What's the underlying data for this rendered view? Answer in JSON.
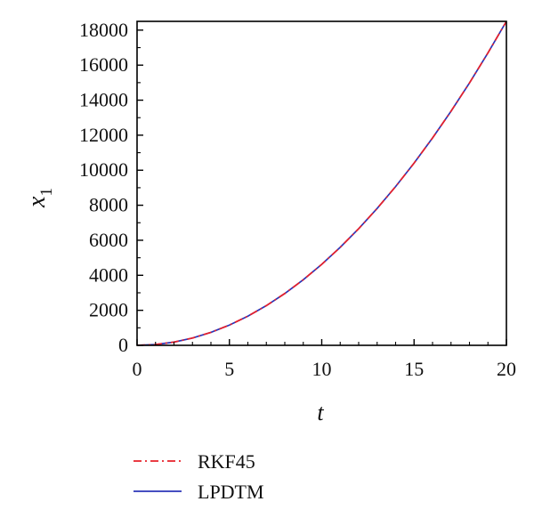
{
  "chart_data": {
    "type": "line",
    "xlabel": "t",
    "ylabel": "x",
    "ylabel_subscript": "1",
    "xlim": [
      0,
      20
    ],
    "ylim": [
      0,
      18500
    ],
    "x_ticks": [
      0,
      5,
      10,
      15,
      20
    ],
    "y_ticks": [
      0,
      2000,
      4000,
      6000,
      8000,
      10000,
      12000,
      14000,
      16000,
      18000
    ],
    "grid": false,
    "legend_position": "bottom-left",
    "series": [
      {
        "name": "RKF45",
        "color": "#e8202a",
        "style": "dash-dot",
        "x": [
          0,
          1,
          2,
          3,
          4,
          5,
          6,
          7,
          8,
          9,
          10,
          11,
          12,
          13,
          14,
          15,
          16,
          17,
          18,
          19,
          20
        ],
        "y": [
          0,
          46,
          185,
          416,
          740,
          1156,
          1665,
          2266,
          2960,
          3746,
          4625,
          5596,
          6660,
          7816,
          9065,
          10406,
          11840,
          13366,
          14985,
          16696,
          18500
        ]
      },
      {
        "name": "LPDTM",
        "color": "#2b35b8",
        "style": "solid",
        "x": [
          0,
          1,
          2,
          3,
          4,
          5,
          6,
          7,
          8,
          9,
          10,
          11,
          12,
          13,
          14,
          15,
          16,
          17,
          18,
          19,
          20
        ],
        "y": [
          0,
          46,
          185,
          416,
          740,
          1156,
          1665,
          2266,
          2960,
          3746,
          4625,
          5596,
          6660,
          7816,
          9065,
          10406,
          11840,
          13366,
          14985,
          16696,
          18500
        ]
      }
    ]
  }
}
